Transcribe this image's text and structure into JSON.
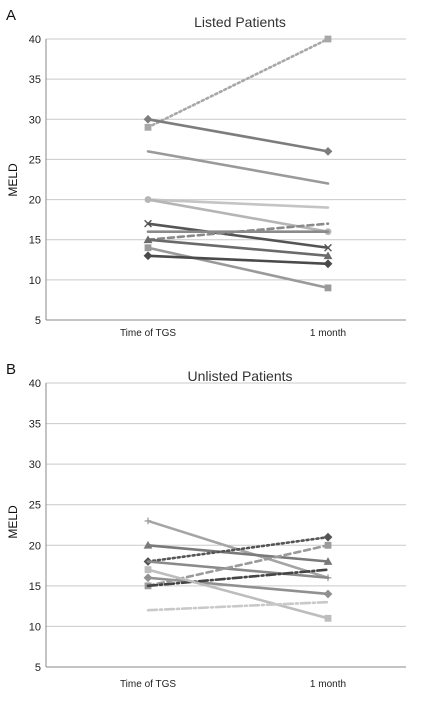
{
  "chart_data": [
    {
      "type": "line",
      "panel_label": "A",
      "title": "Listed Patients",
      "ylabel": "MELD",
      "categories": [
        "Time of TGS",
        "1 month"
      ],
      "ylim": [
        5,
        40
      ],
      "yticks": [
        "5",
        "10",
        "15",
        "20",
        "25",
        "30",
        "35",
        "40"
      ],
      "grid": true,
      "series": [
        {
          "values": [
            29,
            40
          ],
          "color": "#a8a8a8",
          "dash": "dotted",
          "marker": "square"
        },
        {
          "values": [
            30,
            26
          ],
          "color": "#7d7d7d",
          "dash": "solid",
          "marker": "diamond"
        },
        {
          "values": [
            26,
            22
          ],
          "color": "#9a9a9a",
          "dash": "solid",
          "marker": "none"
        },
        {
          "values": [
            20,
            19
          ],
          "color": "#c4c4c4",
          "dash": "solid",
          "marker": "none"
        },
        {
          "values": [
            20,
            16
          ],
          "color": "#b5b5b5",
          "dash": "solid",
          "marker": "circle"
        },
        {
          "values": [
            17,
            14
          ],
          "color": "#555555",
          "dash": "solid",
          "marker": "x"
        },
        {
          "values": [
            16,
            16
          ],
          "color": "#8a8a8a",
          "dash": "solid",
          "marker": "none"
        },
        {
          "values": [
            15,
            17
          ],
          "color": "#8a8a8a",
          "dash": "dashed",
          "marker": "none"
        },
        {
          "values": [
            15,
            13
          ],
          "color": "#6a6a6a",
          "dash": "solid",
          "marker": "triangle"
        },
        {
          "values": [
            14,
            9
          ],
          "color": "#9a9a9a",
          "dash": "solid",
          "marker": "square"
        },
        {
          "values": [
            13,
            12
          ],
          "color": "#4a4a4a",
          "dash": "solid",
          "marker": "diamond"
        }
      ]
    },
    {
      "type": "line",
      "panel_label": "B",
      "title": "Unlisted Patients",
      "ylabel": "MELD",
      "categories": [
        "Time of TGS",
        "1 month"
      ],
      "ylim": [
        5,
        40
      ],
      "yticks": [
        "5",
        "10",
        "15",
        "20",
        "25",
        "30",
        "35",
        "40"
      ],
      "grid": true,
      "series": [
        {
          "values": [
            23,
            16
          ],
          "color": "#a5a5a5",
          "dash": "solid",
          "marker": "plus"
        },
        {
          "values": [
            20,
            18
          ],
          "color": "#7a7a7a",
          "dash": "solid",
          "marker": "triangle"
        },
        {
          "values": [
            18,
            21
          ],
          "color": "#555555",
          "dash": "dotted",
          "marker": "diamond"
        },
        {
          "values": [
            18,
            16
          ],
          "color": "#8a8a8a",
          "dash": "solid",
          "marker": "none"
        },
        {
          "values": [
            16,
            14
          ],
          "color": "#909090",
          "dash": "solid",
          "marker": "diamond"
        },
        {
          "values": [
            15,
            20
          ],
          "color": "#9a9a9a",
          "dash": "dashed",
          "marker": "square"
        },
        {
          "values": [
            15,
            17
          ],
          "color": "#444444",
          "dash": "dashdot",
          "marker": "none"
        },
        {
          "values": [
            17,
            11
          ],
          "color": "#bdbdbd",
          "dash": "solid",
          "marker": "square"
        },
        {
          "values": [
            12,
            13
          ],
          "color": "#c9c9c9",
          "dash": "dashdot",
          "marker": "none"
        }
      ]
    }
  ]
}
